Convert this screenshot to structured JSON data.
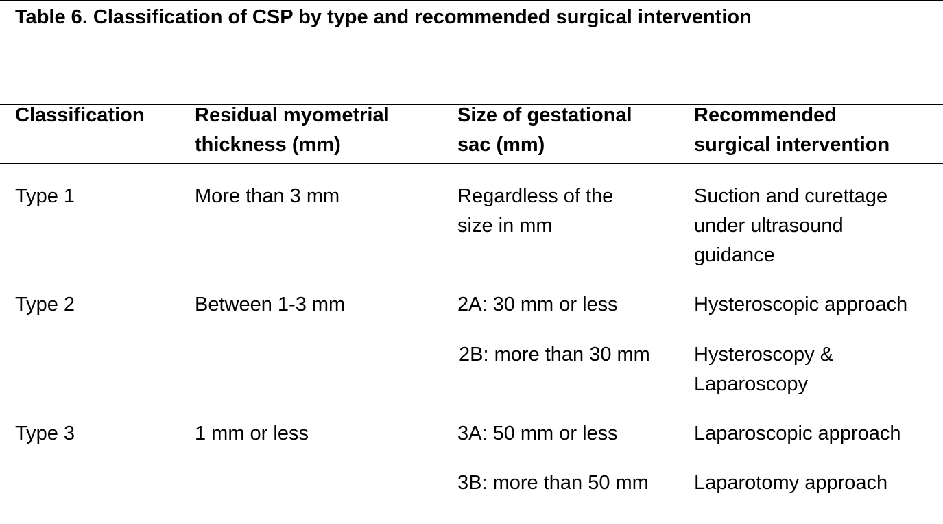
{
  "caption": "Table 6. Classification of CSP by type and recommended surgical intervention",
  "headers": {
    "classification": "Classification",
    "thickness": "Residual myometrial\nthickness (mm)",
    "sac": "Size of gestational\nsac (mm)",
    "intervention": "Recommended\nsurgical intervention"
  },
  "rows": [
    {
      "classification": "Type 1",
      "thickness": "More than 3 mm",
      "sac": "Regardless of the\nsize in mm",
      "intervention": "Suction and curettage\nunder ultrasound\nguidance"
    },
    {
      "classification": "Type 2",
      "thickness": "Between 1-3 mm",
      "sac": "2A: 30 mm or less",
      "intervention": "Hysteroscopic approach"
    },
    {
      "classification": "",
      "thickness": "",
      "sac": "2B: more than 30 mm",
      "intervention": "Hysteroscopy &\nLaparoscopy"
    },
    {
      "classification": "Type 3",
      "thickness": "1 mm or less",
      "sac": "3A: 50 mm or less",
      "intervention": "Laparoscopic approach"
    },
    {
      "classification": "",
      "thickness": "",
      "sac": "3B: more than 50 mm",
      "intervention": "Laparotomy approach"
    }
  ]
}
